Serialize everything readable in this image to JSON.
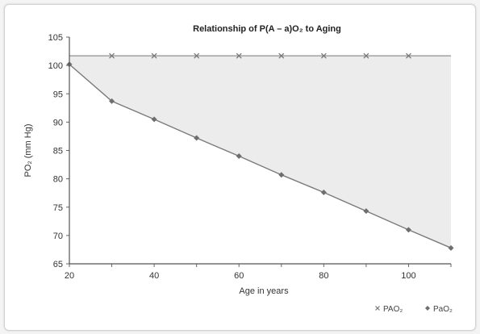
{
  "chart_data": {
    "type": "line",
    "title": "Relationship of P(A – a)O₂ to Aging",
    "xlabel": "Age in years",
    "ylabel": "PO₂ (mm Hg)",
    "xlim": [
      20,
      110
    ],
    "ylim": [
      65,
      105
    ],
    "x_ticks": [
      20,
      40,
      60,
      80,
      100
    ],
    "y_ticks": [
      65,
      70,
      75,
      80,
      85,
      90,
      95,
      100,
      105
    ],
    "x_tick_labels": [
      "20",
      "40",
      "60",
      "80",
      "100"
    ],
    "y_tick_labels": [
      "65",
      "70",
      "75",
      "80",
      "85",
      "90",
      "95",
      "100",
      "105"
    ],
    "shaded_gap": true,
    "legend_position": "bottom-right",
    "series": [
      {
        "name": "PAO₂",
        "marker": "x",
        "color": "#9a9a9a",
        "x": [
          20,
          30,
          40,
          50,
          60,
          70,
          80,
          90,
          100,
          110
        ],
        "y": [
          101.7,
          101.7,
          101.7,
          101.7,
          101.7,
          101.7,
          101.7,
          101.7,
          101.7,
          101.7
        ]
      },
      {
        "name": "PaO₂",
        "marker": "diamond",
        "color": "#7a7a7a",
        "x": [
          20,
          30,
          40,
          50,
          60,
          70,
          80,
          90,
          100,
          110
        ],
        "y": [
          100.2,
          93.7,
          90.5,
          87.2,
          84.0,
          80.7,
          77.6,
          74.3,
          71.0,
          67.8
        ]
      }
    ]
  }
}
